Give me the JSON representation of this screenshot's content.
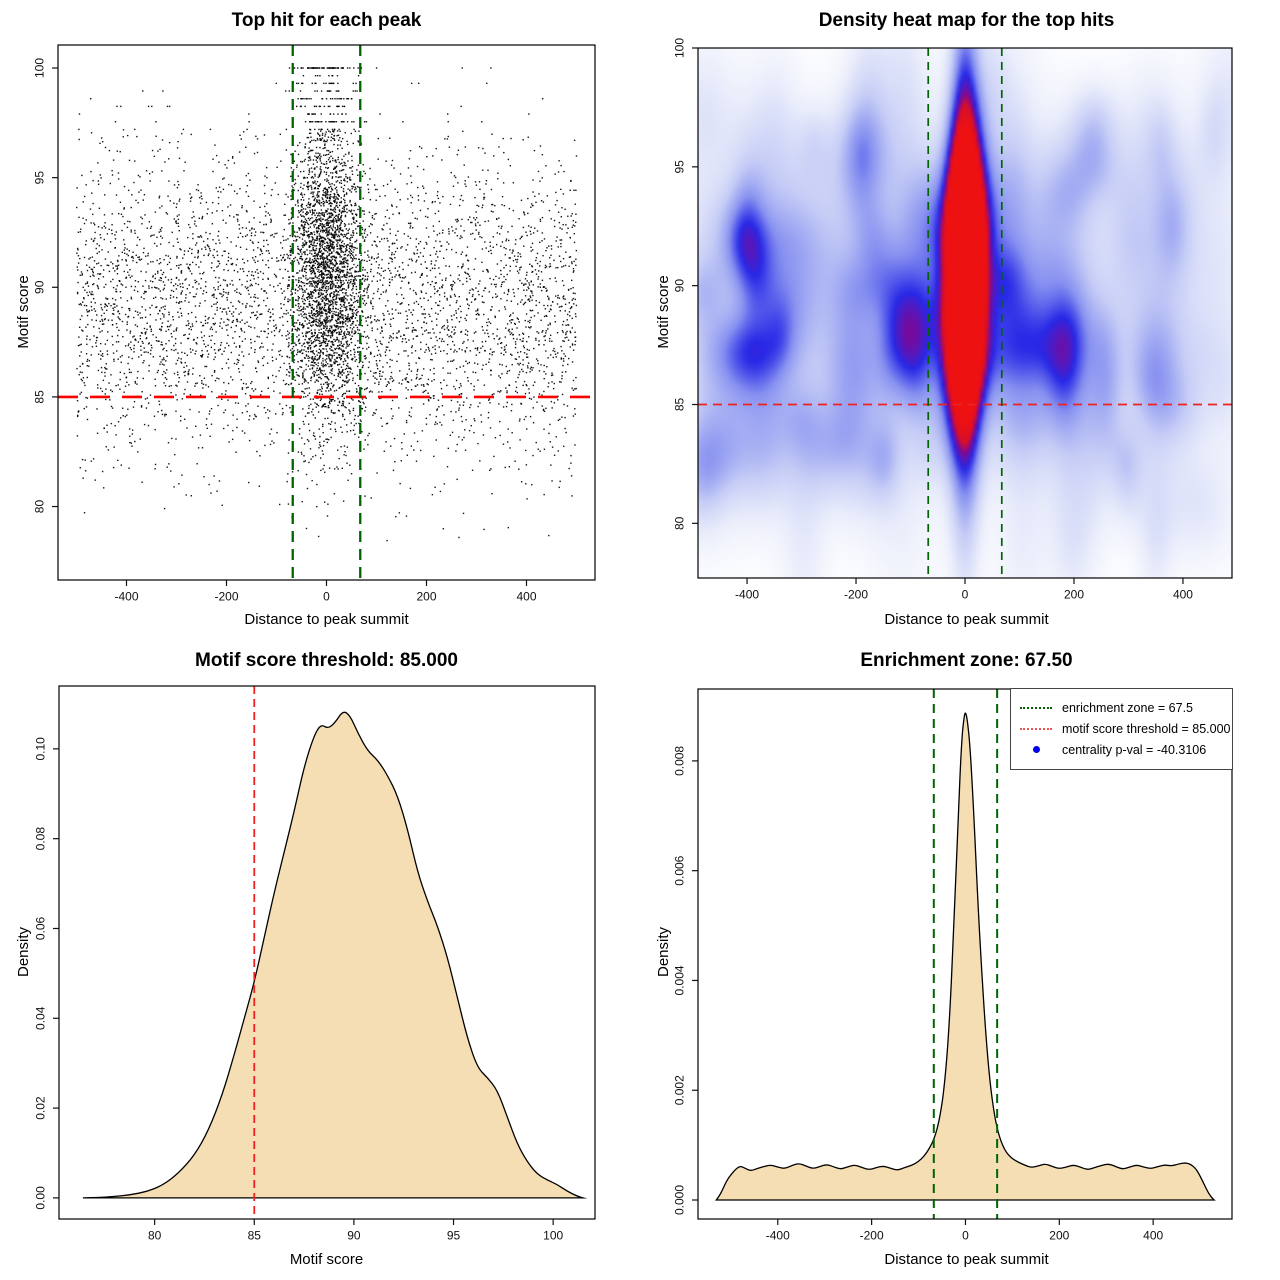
{
  "chart_data": [
    {
      "type": "scatter",
      "title": "Top hit for each peak",
      "xlabel": "Distance to peak summit",
      "ylabel": "Motif score",
      "xlim": [
        -537,
        537
      ],
      "ylim": [
        76.65,
        101.05
      ],
      "xticks": [
        -400,
        -200,
        0,
        200,
        400
      ],
      "xtick_labels": [
        "-400",
        "-200",
        "0",
        "200",
        "400"
      ],
      "yticks": [
        80,
        85,
        90,
        95,
        100
      ],
      "ytick_labels": [
        "80",
        "85",
        "90",
        "95",
        "100"
      ],
      "points": {
        "seed": 42,
        "color": "#000000",
        "marker_size": 1.4,
        "background": {
          "n": 4200,
          "x_range": [
            -500,
            500
          ],
          "y_mean": 89.2,
          "y_sd": 3.5
        },
        "cluster": {
          "n": 2650,
          "x_mean": 3,
          "x_sd": 36,
          "y_mean": 90.6,
          "y_sd": 3.5
        },
        "cluster_high": {
          "n": 160,
          "x_sd": 30,
          "y_range": [
            96.3,
            101.3
          ]
        },
        "y_cap": 100,
        "quantize_above": 97.2,
        "quantize_step": 0.35
      },
      "threshold_line": {
        "value": 85,
        "axis": "y",
        "color": "#ff0000",
        "dash": [
          20,
          12
        ],
        "width": 2.7
      },
      "zone_lines": {
        "values": [
          -67.5,
          67.5
        ],
        "axis": "x",
        "color": "#006400",
        "dash": [
          11,
          7
        ],
        "width": 2.3
      }
    },
    {
      "type": "heatmap",
      "title": "Density heat map for the top hits",
      "xlabel": "Distance to peak summit",
      "ylabel": "Motif score",
      "xlim": [
        -490,
        490
      ],
      "ylim": [
        77.7,
        100
      ],
      "xticks": [
        -400,
        -200,
        0,
        200,
        400
      ],
      "xtick_labels": [
        "-400",
        "-200",
        "0",
        "200",
        "400"
      ],
      "yticks": [
        80,
        85,
        90,
        95,
        100
      ],
      "ytick_labels": [
        "80",
        "85",
        "90",
        "95",
        "100"
      ],
      "heat": {
        "seed": 11,
        "noise_blobs": 150,
        "noise_amp": [
          0.04,
          0.11
        ],
        "noise_sx": [
          18,
          50
        ],
        "noise_sy": [
          0.9,
          2.6
        ],
        "noise_y_mean": 89.0,
        "noise_y_sd": 4.6,
        "band": {
          "amp": 0.1,
          "cx": 0,
          "cy": 89.3,
          "sx": 520,
          "sy": 5
        },
        "core": {
          "amp": 1.4,
          "cx": 2,
          "cy": 90.6,
          "sx": 25,
          "sy": 3.8
        },
        "plume": {
          "amp": 0.5,
          "cx": 0,
          "cy": 93.0,
          "sx": 18,
          "sy": 7.0
        },
        "lower": {
          "amp": 0.28,
          "cx": 0,
          "cy": 87.0,
          "sx": 21,
          "sy": 5.5
        },
        "color_stops": [
          [
            0.0,
            "#ffffff"
          ],
          [
            0.1,
            "#ebeefb"
          ],
          [
            0.25,
            "#c6cdf6"
          ],
          [
            0.42,
            "#8791f0"
          ],
          [
            0.58,
            "#2828e6"
          ],
          [
            0.7,
            "#780a9a"
          ],
          [
            0.8,
            "#d70f28"
          ],
          [
            1.0,
            "#ee1111"
          ]
        ]
      },
      "threshold_line": {
        "value": 85,
        "axis": "y",
        "color": "#ee2222",
        "dash": [
          9,
          6
        ],
        "width": 1.7
      },
      "zone_lines": {
        "values": [
          -67.5,
          67.5
        ],
        "axis": "x",
        "color": "#006400",
        "dash": [
          8,
          6
        ],
        "width": 1.7
      }
    },
    {
      "type": "density",
      "title": "Motif score threshold: 85.000",
      "xlabel": "Motif score",
      "ylabel": "Density",
      "xlim": [
        75.2,
        102.1
      ],
      "ylim": [
        -0.0047,
        0.114
      ],
      "xticks": [
        80,
        85,
        90,
        95,
        100
      ],
      "xtick_labels": [
        "80",
        "85",
        "90",
        "95",
        "100"
      ],
      "yticks": [
        0,
        0.02,
        0.04,
        0.06,
        0.08,
        0.1
      ],
      "ytick_labels": [
        "0.00",
        "0.02",
        "0.04",
        "0.06",
        "0.08",
        "0.10"
      ],
      "fill": "#f5deb3",
      "stroke": "#000000",
      "curve": [
        [
          76.4,
          0
        ],
        [
          77.2,
          0.0001
        ],
        [
          78,
          0.0003
        ],
        [
          78.8,
          0.0007
        ],
        [
          79.6,
          0.0014
        ],
        [
          80.4,
          0.0028
        ],
        [
          81.2,
          0.0055
        ],
        [
          82,
          0.0095
        ],
        [
          82.7,
          0.015
        ],
        [
          83.4,
          0.023
        ],
        [
          84,
          0.032
        ],
        [
          84.5,
          0.04
        ],
        [
          85,
          0.048
        ],
        [
          85.5,
          0.058
        ],
        [
          86,
          0.068
        ],
        [
          86.5,
          0.077
        ],
        [
          87,
          0.086
        ],
        [
          87.5,
          0.096
        ],
        [
          88,
          0.103
        ],
        [
          88.35,
          0.1055
        ],
        [
          88.7,
          0.1045
        ],
        [
          89.05,
          0.1058
        ],
        [
          89.45,
          0.1085
        ],
        [
          89.8,
          0.1075
        ],
        [
          90.2,
          0.1035
        ],
        [
          90.7,
          0.0995
        ],
        [
          91.2,
          0.0975
        ],
        [
          91.7,
          0.094
        ],
        [
          92.2,
          0.0895
        ],
        [
          92.7,
          0.082
        ],
        [
          93.2,
          0.0725
        ],
        [
          93.7,
          0.066
        ],
        [
          94.2,
          0.0605
        ],
        [
          94.7,
          0.0535
        ],
        [
          95.2,
          0.0445
        ],
        [
          95.7,
          0.0355
        ],
        [
          96.2,
          0.029
        ],
        [
          96.7,
          0.0268
        ],
        [
          97.2,
          0.024
        ],
        [
          97.7,
          0.018
        ],
        [
          98.2,
          0.012
        ],
        [
          98.7,
          0.008
        ],
        [
          99.2,
          0.0053
        ],
        [
          99.7,
          0.004
        ],
        [
          100.2,
          0.003
        ],
        [
          100.7,
          0.0015
        ],
        [
          101.2,
          0.0004
        ],
        [
          101.5,
          0
        ]
      ],
      "zone_lines": {
        "values": [
          85
        ],
        "axis": "x",
        "color": "#ee2222",
        "dash": [
          8,
          5
        ],
        "width": 1.8
      }
    },
    {
      "type": "density",
      "title": "Enrichment zone: 67.50",
      "xlabel": "Distance to peak summit",
      "ylabel": "Density",
      "xlim": [
        -570,
        568
      ],
      "ylim": [
        -0.000346,
        0.00931
      ],
      "xticks": [
        -400,
        -200,
        0,
        200,
        400
      ],
      "xtick_labels": [
        "-400",
        "-200",
        "0",
        "200",
        "400"
      ],
      "yticks": [
        0,
        0.002,
        0.004,
        0.006,
        0.008
      ],
      "ytick_labels": [
        "0.000",
        "0.002",
        "0.004",
        "0.006",
        "0.008"
      ],
      "fill": "#f5deb3",
      "stroke": "#000000",
      "curve": [
        [
          -531,
          0
        ],
        [
          -524,
          8e-05
        ],
        [
          -517,
          0.0002
        ],
        [
          -509,
          0.00035
        ],
        [
          -500,
          0.00046
        ],
        [
          -490,
          0.00056
        ],
        [
          -480,
          0.00062
        ],
        [
          -470,
          0.00058
        ],
        [
          -458,
          0.00053
        ],
        [
          -445,
          0.00057
        ],
        [
          -430,
          0.00061
        ],
        [
          -415,
          0.00064
        ],
        [
          -400,
          0.0006
        ],
        [
          -385,
          0.00057
        ],
        [
          -370,
          0.00063
        ],
        [
          -355,
          0.00067
        ],
        [
          -340,
          0.00062
        ],
        [
          -325,
          0.00057
        ],
        [
          -310,
          0.00061
        ],
        [
          -295,
          0.00065
        ],
        [
          -280,
          0.0006
        ],
        [
          -265,
          0.00056
        ],
        [
          -250,
          0.00061
        ],
        [
          -235,
          0.00064
        ],
        [
          -220,
          0.00059
        ],
        [
          -205,
          0.00055
        ],
        [
          -190,
          0.00059
        ],
        [
          -175,
          0.00062
        ],
        [
          -160,
          0.00058
        ],
        [
          -145,
          0.00054
        ],
        [
          -130,
          0.00059
        ],
        [
          -115,
          0.00063
        ],
        [
          -100,
          0.0007
        ],
        [
          -88,
          0.0008
        ],
        [
          -76,
          0.00095
        ],
        [
          -65,
          0.00115
        ],
        [
          -55,
          0.00148
        ],
        [
          -45,
          0.00205
        ],
        [
          -35,
          0.0031
        ],
        [
          -25,
          0.0049
        ],
        [
          -15,
          0.0071
        ],
        [
          -8,
          0.0084
        ],
        [
          -3,
          0.0088
        ],
        [
          0,
          0.0089
        ],
        [
          4,
          0.00875
        ],
        [
          10,
          0.00825
        ],
        [
          18,
          0.007
        ],
        [
          26,
          0.0055
        ],
        [
          34,
          0.00425
        ],
        [
          43,
          0.00305
        ],
        [
          52,
          0.00215
        ],
        [
          62,
          0.00152
        ],
        [
          72,
          0.00115
        ],
        [
          84,
          0.0009
        ],
        [
          97,
          0.00077
        ],
        [
          110,
          0.0007
        ],
        [
          125,
          0.00064
        ],
        [
          140,
          0.00059
        ],
        [
          155,
          0.00062
        ],
        [
          170,
          0.00066
        ],
        [
          185,
          0.00061
        ],
        [
          200,
          0.00057
        ],
        [
          215,
          0.0006
        ],
        [
          230,
          0.00064
        ],
        [
          245,
          0.0006
        ],
        [
          260,
          0.00055
        ],
        [
          275,
          0.00059
        ],
        [
          290,
          0.00063
        ],
        [
          305,
          0.00066
        ],
        [
          320,
          0.00061
        ],
        [
          335,
          0.00056
        ],
        [
          350,
          0.0006
        ],
        [
          365,
          0.00064
        ],
        [
          380,
          0.0006
        ],
        [
          395,
          0.00057
        ],
        [
          410,
          0.00061
        ],
        [
          425,
          0.00064
        ],
        [
          440,
          0.00062
        ],
        [
          455,
          0.00066
        ],
        [
          470,
          0.00068
        ],
        [
          482,
          0.00064
        ],
        [
          492,
          0.00056
        ],
        [
          501,
          0.00042
        ],
        [
          509,
          0.00028
        ],
        [
          517,
          0.00014
        ],
        [
          524,
          5e-05
        ],
        [
          530,
          0
        ]
      ],
      "zone_lines": {
        "values": [
          -67.5,
          67.5
        ],
        "axis": "x",
        "color": "#006400",
        "dash": [
          9,
          6
        ],
        "width": 2
      },
      "legend": {
        "items": [
          {
            "swatch": "dotted-line",
            "color": "#006400",
            "label": "enrichment zone = 67.5"
          },
          {
            "swatch": "dotted-line",
            "color": "#ee5555",
            "label": "motif score threshold = 85.000"
          },
          {
            "swatch": "dot",
            "color": "#0000ee",
            "label": "centrality p-val = -40.3106"
          }
        ]
      }
    }
  ]
}
